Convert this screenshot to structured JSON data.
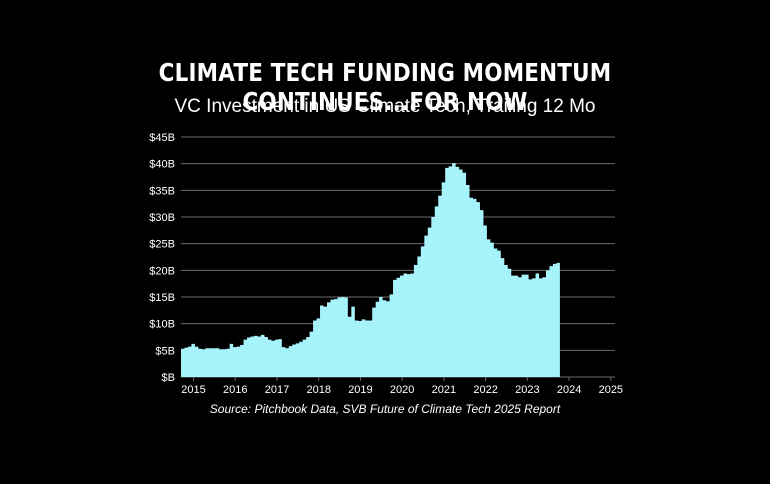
{
  "title": "CLIMATE TECH FUNDING MOMENTUM CONTINUES...FOR NOW",
  "subtitle": "VC Investment in US Climate Tech, Trailing 12 Mo",
  "source": "Source: Pitchbook Data, SVB Future of Climate Tech 2025 Report",
  "colors": {
    "background": "#000000",
    "fill": "#a6f3fb",
    "grid": "#6b6b6b",
    "text": "#ffffff"
  },
  "chart_data": {
    "type": "area",
    "title": "VC Investment in US Climate Tech, Trailing 12 Mo",
    "xlabel": "",
    "ylabel": "",
    "ylim": [
      0,
      45
    ],
    "xlim": [
      2014.7,
      2025.1
    ],
    "y_ticks": [
      0,
      5,
      10,
      15,
      20,
      25,
      30,
      35,
      40,
      45
    ],
    "y_tick_labels": [
      "$B",
      "$5B",
      "$10B",
      "$15B",
      "$20B",
      "$25B",
      "$30B",
      "$35B",
      "$40B",
      "$45B"
    ],
    "x_ticks": [
      2015,
      2016,
      2017,
      2018,
      2019,
      2020,
      2021,
      2022,
      2023,
      2024,
      2025
    ],
    "x_tick_labels": [
      "2015",
      "2016",
      "2017",
      "2018",
      "2019",
      "2020",
      "2021",
      "2022",
      "2023",
      "2024",
      "2025"
    ],
    "grid": true,
    "step": true,
    "series": [
      {
        "values_unit": "$B",
        "x_start": 2014.7,
        "x_step": 0.0833,
        "values": [
          5.3,
          5.5,
          5.7,
          6.2,
          5.7,
          5.3,
          5.2,
          5.4,
          5.4,
          5.4,
          5.4,
          5.2,
          5.2,
          5.3,
          6.2,
          5.6,
          5.7,
          6.0,
          7.0,
          7.4,
          7.6,
          7.7,
          7.6,
          7.9,
          7.5,
          7.0,
          6.8,
          7.0,
          7.1,
          5.6,
          5.4,
          5.8,
          6.1,
          6.3,
          6.6,
          7.0,
          7.5,
          8.5,
          10.6,
          11.0,
          13.4,
          13.2,
          14.0,
          14.5,
          14.6,
          14.9,
          15.0,
          14.9,
          11.3,
          13.2,
          10.6,
          10.5,
          10.8,
          10.6,
          10.6,
          13.0,
          14.1,
          15.0,
          14.4,
          14.2,
          15.5,
          18.2,
          18.6,
          19.0,
          19.4,
          19.3,
          19.4,
          21.0,
          22.6,
          24.5,
          26.5,
          28.0,
          30.0,
          32.0,
          34.0,
          36.5,
          39.2,
          39.5,
          40.1,
          39.4,
          38.9,
          38.3,
          36.0,
          33.6,
          33.4,
          32.8,
          31.3,
          28.4,
          25.8,
          25.2,
          24.1,
          23.7,
          22.3,
          21.0,
          20.3,
          19.0,
          19.0,
          18.7,
          19.2,
          19.2,
          18.3,
          18.5,
          19.4,
          18.5,
          18.7,
          20.0,
          20.8,
          21.2,
          21.4
        ]
      }
    ]
  }
}
